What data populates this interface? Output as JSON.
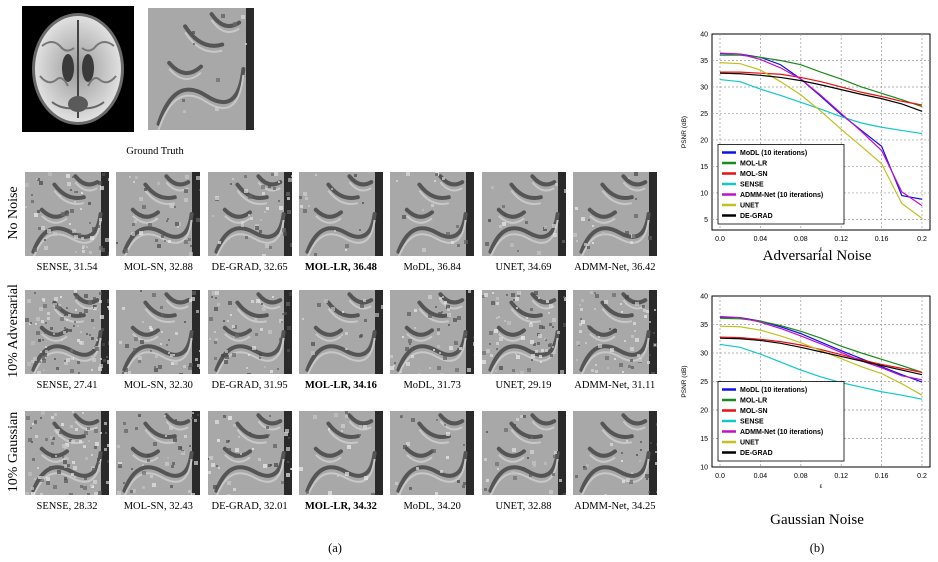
{
  "figure": {
    "ground_truth_label": "Ground Truth",
    "panel_a_label": "(a)",
    "panel_b_label": "(b)",
    "rows": [
      {
        "label": "No Noise",
        "tiles": [
          {
            "method": "SENSE",
            "psnr": "31.54",
            "bold": false,
            "noise": 0.22
          },
          {
            "method": "MOL-SN",
            "psnr": "32.88",
            "bold": false,
            "noise": 0.16
          },
          {
            "method": "DE-GRAD",
            "psnr": "32.65",
            "bold": false,
            "noise": 0.16
          },
          {
            "method": "MOL-LR",
            "psnr": "36.48",
            "bold": true,
            "noise": 0.06
          },
          {
            "method": "MoDL",
            "psnr": "36.84",
            "bold": false,
            "noise": 0.06
          },
          {
            "method": "UNET",
            "psnr": "34.69",
            "bold": false,
            "noise": 0.08
          },
          {
            "method": "ADMM-Net",
            "psnr": "36.42",
            "bold": false,
            "noise": 0.08
          }
        ]
      },
      {
        "label": "10% Adversarial",
        "tiles": [
          {
            "method": "SENSE",
            "psnr": "27.41",
            "bold": false,
            "noise": 0.42
          },
          {
            "method": "MOL-SN",
            "psnr": "32.30",
            "bold": false,
            "noise": 0.18
          },
          {
            "method": "DE-GRAD",
            "psnr": "31.95",
            "bold": false,
            "noise": 0.2
          },
          {
            "method": "MOL-LR",
            "psnr": "34.16",
            "bold": true,
            "noise": 0.07
          },
          {
            "method": "MoDL",
            "psnr": "31.73",
            "bold": false,
            "noise": 0.2
          },
          {
            "method": "UNET",
            "psnr": "29.19",
            "bold": false,
            "noise": 0.3
          },
          {
            "method": "ADMM-Net",
            "psnr": "31.11",
            "bold": false,
            "noise": 0.24
          }
        ]
      },
      {
        "label": "10% Gaussian",
        "tiles": [
          {
            "method": "SENSE",
            "psnr": "28.32",
            "bold": false,
            "noise": 0.36
          },
          {
            "method": "MOL-SN",
            "psnr": "32.43",
            "bold": false,
            "noise": 0.17
          },
          {
            "method": "DE-GRAD",
            "psnr": "32.01",
            "bold": false,
            "noise": 0.17
          },
          {
            "method": "MOL-LR",
            "psnr": "34.32",
            "bold": true,
            "noise": 0.07
          },
          {
            "method": "MoDL",
            "psnr": "34.20",
            "bold": false,
            "noise": 0.08
          },
          {
            "method": "UNET",
            "psnr": "32.88",
            "bold": false,
            "noise": 0.12
          },
          {
            "method": "ADMM-Net",
            "psnr": "34.25",
            "bold": false,
            "noise": 0.1
          }
        ]
      }
    ]
  },
  "colors": {
    "MoDL": "#1010e8",
    "MOL-LR": "#1a8a1a",
    "MOL-SN": "#e81010",
    "SENSE": "#10c8c8",
    "ADMM-Net": "#c010c8",
    "UNET": "#c0c020",
    "DE-GRAD": "#000000"
  },
  "chart_data": [
    {
      "type": "line",
      "title": "Adversarial Noise",
      "xlabel": "ε",
      "ylabel": "PSNR (dB)",
      "x": [
        0,
        0.02,
        0.04,
        0.06,
        0.08,
        0.1,
        0.12,
        0.14,
        0.16,
        0.18,
        0.2
      ],
      "xticks": [
        "0.0",
        "0.04",
        "0.08",
        "0.12",
        "0.16",
        "0.2"
      ],
      "ylim": [
        3,
        40
      ],
      "yticks": [
        5,
        10,
        15,
        20,
        25,
        30,
        35,
        40
      ],
      "grid": true,
      "legend_position": "bottom-left",
      "series": [
        {
          "name": "MoDL (10 iterations)",
          "key": "MoDL",
          "values": [
            36.3,
            36.2,
            35.6,
            34.2,
            31.5,
            28.2,
            24.8,
            21.8,
            18.8,
            9.5,
            8.8
          ]
        },
        {
          "name": "MOL-LR",
          "key": "MOL-LR",
          "values": [
            36.0,
            36.0,
            35.6,
            35.0,
            34.2,
            32.8,
            31.5,
            30.0,
            28.8,
            27.6,
            26.3
          ]
        },
        {
          "name": "MOL-SN",
          "key": "MOL-SN",
          "values": [
            32.8,
            32.8,
            32.6,
            32.4,
            31.8,
            31.0,
            30.0,
            29.0,
            28.2,
            27.3,
            26.6
          ]
        },
        {
          "name": "SENSE",
          "key": "SENSE",
          "values": [
            31.4,
            31.0,
            29.6,
            28.4,
            27.1,
            25.8,
            24.4,
            23.2,
            22.4,
            21.8,
            21.2
          ]
        },
        {
          "name": "ADMM-Net (10 iterations)",
          "key": "ADMM-Net",
          "values": [
            36.4,
            36.2,
            35.2,
            33.6,
            31.5,
            28.4,
            25.0,
            21.6,
            18.0,
            10.2,
            7.6
          ]
        },
        {
          "name": "UNET",
          "key": "UNET",
          "values": [
            34.6,
            34.4,
            33.2,
            31.0,
            28.5,
            25.4,
            22.0,
            18.8,
            15.5,
            8.0,
            5.2
          ]
        },
        {
          "name": "DE-GRAD",
          "key": "DE-GRAD",
          "values": [
            32.6,
            32.5,
            32.2,
            31.8,
            31.2,
            30.4,
            29.5,
            28.6,
            27.8,
            26.8,
            25.4
          ]
        }
      ]
    },
    {
      "type": "line",
      "title": "Gaussian Noise",
      "xlabel": "ε",
      "ylabel": "PSNR (dB)",
      "x": [
        0,
        0.02,
        0.04,
        0.06,
        0.08,
        0.1,
        0.12,
        0.14,
        0.16,
        0.18,
        0.2
      ],
      "xticks": [
        "0.0",
        "0.04",
        "0.08",
        "0.12",
        "0.16",
        "0.2"
      ],
      "ylim": [
        10,
        40
      ],
      "yticks": [
        10,
        15,
        20,
        25,
        30,
        35,
        40
      ],
      "grid": true,
      "legend_position": "bottom-left",
      "series": [
        {
          "name": "MoDL (10 iterations)",
          "key": "MoDL",
          "values": [
            36.3,
            36.2,
            35.6,
            34.6,
            33.4,
            31.9,
            30.4,
            29.0,
            27.6,
            26.2,
            24.9
          ]
        },
        {
          "name": "MOL-LR",
          "key": "MOL-LR",
          "values": [
            36.1,
            36.0,
            35.6,
            34.8,
            33.8,
            32.6,
            31.2,
            30.0,
            28.9,
            27.8,
            26.6
          ]
        },
        {
          "name": "MOL-SN",
          "key": "MOL-SN",
          "values": [
            32.8,
            32.7,
            32.4,
            32.0,
            31.4,
            30.6,
            29.7,
            28.8,
            28.0,
            27.3,
            26.6
          ]
        },
        {
          "name": "SENSE",
          "key": "SENSE",
          "values": [
            31.5,
            31.0,
            29.8,
            28.4,
            27.0,
            25.8,
            24.8,
            24.0,
            23.2,
            22.6,
            21.9
          ]
        },
        {
          "name": "ADMM-Net (10 iterations)",
          "key": "ADMM-Net",
          "values": [
            36.4,
            36.2,
            35.4,
            34.3,
            33.0,
            31.6,
            30.1,
            28.6,
            27.4,
            26.0,
            25.3
          ]
        },
        {
          "name": "UNET",
          "key": "UNET",
          "values": [
            34.7,
            34.6,
            34.0,
            33.0,
            31.8,
            30.4,
            29.0,
            27.6,
            26.4,
            24.6,
            22.6
          ]
        },
        {
          "name": "DE-GRAD",
          "key": "DE-GRAD",
          "values": [
            32.6,
            32.5,
            32.2,
            31.7,
            31.0,
            30.2,
            29.4,
            28.6,
            27.8,
            27.0,
            26.2
          ]
        }
      ]
    }
  ]
}
